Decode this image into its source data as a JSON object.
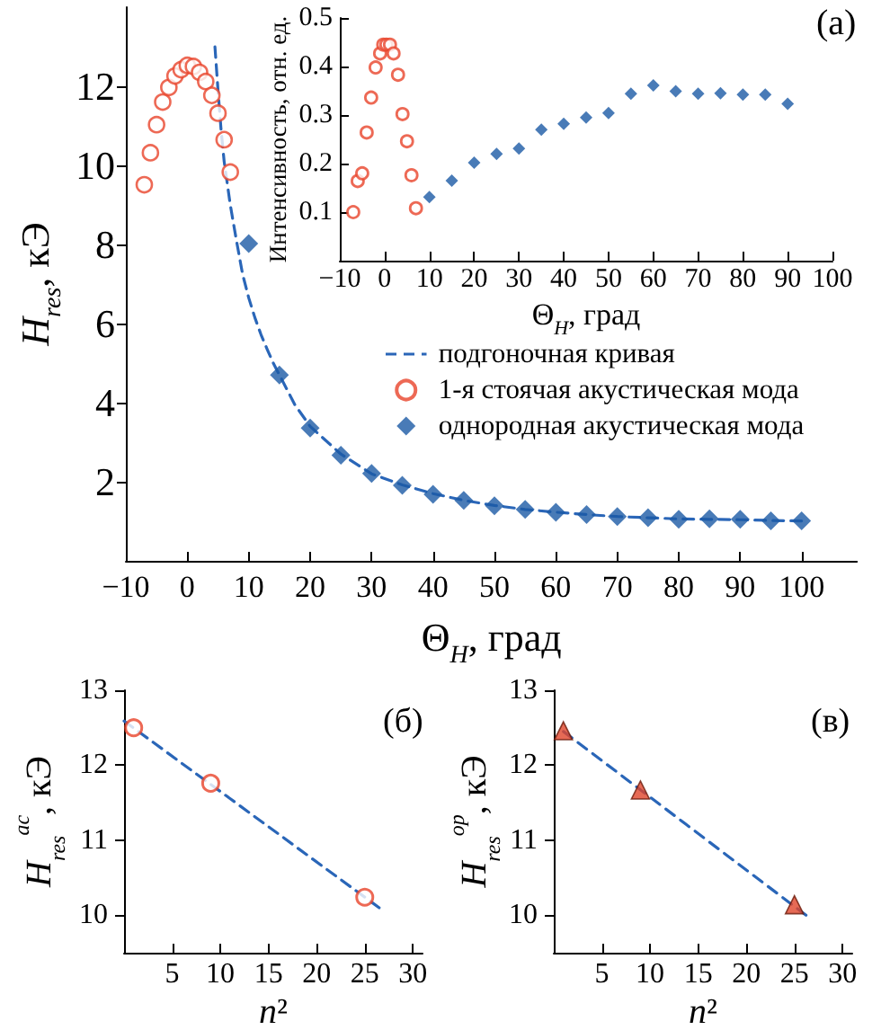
{
  "chart_data": [
    {
      "type": "scatter",
      "xlabel": "Θ$_{H}$, град",
      "ylabel": "H$_{res}$, кЭ",
      "xlim": [
        -10,
        109
      ],
      "ylim": [
        0,
        14
      ],
      "xticks": [
        {
          "value": -10,
          "label": "−10"
        },
        0,
        10,
        20,
        30,
        40,
        50,
        60,
        70,
        80,
        90,
        100
      ],
      "yticks": [
        2,
        4,
        6,
        8,
        10,
        12
      ],
      "legend": "right",
      "annotations": [
        "(а)"
      ],
      "series": [
        {
          "name": "подгоночная кривая",
          "type": "line",
          "line_style": "dashed",
          "marker": "none",
          "color": "#2a66b8",
          "x": [
            4.5,
            5,
            5.5,
            6,
            7,
            8,
            9,
            10,
            11,
            12,
            13,
            14,
            15,
            17.5,
            20,
            25,
            30,
            35,
            40,
            45,
            50,
            55,
            60,
            65,
            70,
            75,
            80,
            85,
            90,
            95,
            100
          ],
          "values": [
            13.0,
            11.9,
            10.9,
            10.1,
            9.0,
            8.1,
            7.25,
            6.65,
            6.15,
            5.72,
            5.35,
            5.0,
            4.7,
            3.95,
            3.4,
            2.7,
            2.2,
            1.92,
            1.7,
            1.53,
            1.4,
            1.3,
            1.23,
            1.17,
            1.12,
            1.09,
            1.06,
            1.05,
            1.04,
            1.02,
            1.01
          ]
        },
        {
          "name": "1-я стоячая акустическая мода",
          "marker": "circle",
          "color": "#e8442b",
          "x": [
            -7,
            -6,
            -5,
            -4,
            -3,
            -2,
            -1,
            0,
            1,
            2,
            3,
            4,
            5,
            6,
            7
          ],
          "values": [
            9.51,
            10.32,
            11.03,
            11.6,
            11.97,
            12.26,
            12.42,
            12.53,
            12.5,
            12.35,
            12.12,
            11.77,
            11.32,
            10.65,
            9.83
          ]
        },
        {
          "name": "однородная акустическая мода",
          "marker": "diamond",
          "color": "#1b5aa5",
          "x": [
            10,
            15,
            20,
            25,
            30,
            35,
            40,
            45,
            50,
            55,
            60,
            65,
            70,
            75,
            80,
            85,
            90,
            95,
            100
          ],
          "values": [
            8.02,
            4.7,
            3.36,
            2.67,
            2.21,
            1.91,
            1.68,
            1.53,
            1.39,
            1.3,
            1.23,
            1.17,
            1.12,
            1.09,
            1.05,
            1.06,
            1.05,
            1.01,
            1.01
          ]
        }
      ]
    },
    {
      "type": "scatter",
      "xlabel": "Θ$_{H}$, град",
      "ylabel": "Интенсивность, отн. ед.",
      "xlim": [
        -10,
        100
      ],
      "ylim": [
        0,
        0.5
      ],
      "xticks": [
        {
          "value": -10,
          "label": "−10"
        },
        0,
        10,
        20,
        30,
        40,
        50,
        60,
        70,
        80,
        90,
        100
      ],
      "yticks": [
        0.1,
        0.2,
        0.3,
        0.4,
        0.5
      ],
      "series": [
        {
          "marker": "circle",
          "color": "#e8442b",
          "x": [
            -7,
            -6,
            -5,
            -4,
            -3,
            -2,
            -1,
            -0.3,
            0.4,
            1.2,
            2,
            3,
            4,
            5,
            6,
            7
          ],
          "values": [
            0.1,
            0.164,
            0.18,
            0.264,
            0.336,
            0.398,
            0.427,
            0.445,
            0.445,
            0.445,
            0.427,
            0.383,
            0.302,
            0.246,
            0.176,
            0.108
          ]
        },
        {
          "marker": "diamond",
          "color": "#1b5aa5",
          "x": [
            10,
            15,
            20,
            25,
            30,
            35,
            40,
            45,
            50,
            55,
            60,
            65,
            70,
            75,
            80,
            85,
            90
          ],
          "values": [
            0.131,
            0.165,
            0.202,
            0.22,
            0.231,
            0.27,
            0.282,
            0.295,
            0.304,
            0.344,
            0.361,
            0.349,
            0.344,
            0.345,
            0.342,
            0.342,
            0.323
          ]
        }
      ]
    },
    {
      "type": "scatter",
      "xlabel": "n²",
      "ylabel": "H$_{res}$$^{ac}$, кЭ",
      "xlim": [
        0,
        31
      ],
      "ylim": [
        9.5,
        13
      ],
      "xticks": [
        5,
        10,
        15,
        20,
        25,
        30
      ],
      "yticks": [
        10,
        11,
        12,
        13
      ],
      "annotations": [
        "(б)"
      ],
      "series": [
        {
          "type": "line",
          "line_style": "dashed",
          "marker": "none",
          "color": "#2a66b8",
          "x": [
            0,
            26.5
          ],
          "values": [
            12.59,
            10.1
          ]
        },
        {
          "marker": "circle",
          "color": "#e8442b",
          "x": [
            1,
            9,
            25
          ],
          "values": [
            12.5,
            11.76,
            10.24
          ]
        }
      ]
    },
    {
      "type": "scatter",
      "xlabel": "n²",
      "ylabel": "H$_{res}$$^{op}$, кЭ",
      "xlim": [
        0,
        31
      ],
      "ylim": [
        9.5,
        13
      ],
      "xticks": [
        5,
        10,
        15,
        20,
        25,
        30
      ],
      "yticks": [
        10,
        11,
        12,
        13
      ],
      "annotations": [
        "(в)"
      ],
      "series": [
        {
          "type": "line",
          "line_style": "dashed",
          "marker": "none",
          "color": "#2a66b8",
          "x": [
            1,
            26.2
          ],
          "values": [
            12.45,
            10.0
          ]
        },
        {
          "marker": "triangle",
          "color": "#e0452b",
          "x": [
            1,
            9,
            25
          ],
          "values": [
            12.46,
            11.67,
            10.14
          ]
        }
      ]
    }
  ]
}
